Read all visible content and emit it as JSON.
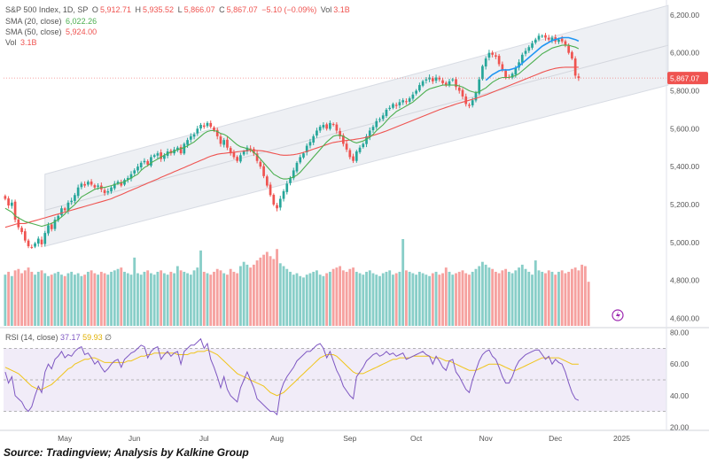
{
  "header": {
    "symbol": "S&P 500 Index, 1D, SP",
    "open_label": "O",
    "open": "5,912.71",
    "high_label": "H",
    "high": "5,935.52",
    "low_label": "L",
    "low": "5,866.07",
    "close_label": "C",
    "close": "5,867.07",
    "change": "−5.10 (−0.09%)",
    "vol_label": "Vol",
    "vol": "3.1B"
  },
  "indicators": {
    "sma20_label": "SMA (20, close)",
    "sma20_value": "6,022.26",
    "sma50_label": "SMA (50, close)",
    "sma50_value": "5,924.00",
    "vol_label": "Vol",
    "vol_value": "3.1B",
    "rsi_label": "RSI (14, close)",
    "rsi_value": "37.17",
    "rsi_ma_value": "59.93",
    "rsi_extra": "∅"
  },
  "price_badge": "5,867.07",
  "caption": "Source: Tradingview; Analysis by Kalkine Group",
  "colors": {
    "up": "#26a69a",
    "down": "#ef5350",
    "sma20": "#4caf50",
    "sma50": "#ef5350",
    "sma_blue": "#2196f3",
    "rsi": "#7e57c2",
    "rsi_ma": "#f0c419",
    "channel": "#d7dbe3"
  },
  "chart_data": {
    "type": "candlestick",
    "price_axis_ticks": [
      "6,200.00",
      "6,000.00",
      "5,800.00",
      "5,600.00",
      "5,400.00",
      "5,200.00",
      "5,000.00",
      "4,800.00",
      "4,600.00"
    ],
    "price_axis_values": [
      6200,
      6000,
      5800,
      5600,
      5400,
      5200,
      5000,
      4800,
      4600
    ],
    "rsi_axis_ticks": [
      "80.00",
      "60.00",
      "40.00",
      "20.00"
    ],
    "rsi_axis_values": [
      80,
      60,
      40,
      20
    ],
    "rsi_bands": [
      70,
      50,
      30
    ],
    "x_tick_labels": [
      "May",
      "Jun",
      "Jul",
      "Aug",
      "Sep",
      "Oct",
      "Nov",
      "Dec",
      "2025"
    ],
    "x_tick_index": [
      18,
      39,
      60,
      82,
      104,
      124,
      145,
      166,
      186
    ],
    "channel": {
      "start_index": 12,
      "end_index": 200,
      "lower_start": 4980,
      "lower_end": 5830,
      "upper_start": 5360,
      "upper_end": 6250
    },
    "closes": [
      5230,
      5195,
      5210,
      5120,
      5080,
      5055,
      5010,
      4980,
      4975,
      4995,
      5020,
      4990,
      5050,
      5090,
      5070,
      5120,
      5140,
      5180,
      5170,
      5210,
      5220,
      5250,
      5290,
      5310,
      5300,
      5320,
      5305,
      5290,
      5300,
      5280,
      5260,
      5270,
      5290,
      5310,
      5320,
      5300,
      5330,
      5340,
      5360,
      5380,
      5400,
      5420,
      5430,
      5410,
      5450,
      5460,
      5470,
      5440,
      5460,
      5480,
      5470,
      5490,
      5500,
      5470,
      5520,
      5540,
      5560,
      5570,
      5600,
      5620,
      5610,
      5630,
      5610,
      5590,
      5560,
      5520,
      5540,
      5500,
      5470,
      5450,
      5430,
      5460,
      5480,
      5500,
      5490,
      5470,
      5430,
      5400,
      5350,
      5300,
      5250,
      5200,
      5180,
      5230,
      5270,
      5310,
      5340,
      5380,
      5420,
      5450,
      5470,
      5510,
      5530,
      5560,
      5590,
      5610,
      5620,
      5600,
      5630,
      5620,
      5590,
      5560,
      5520,
      5490,
      5450,
      5430,
      5480,
      5500,
      5520,
      5560,
      5590,
      5610,
      5640,
      5650,
      5670,
      5700,
      5710,
      5730,
      5720,
      5740,
      5750,
      5740,
      5760,
      5780,
      5800,
      5830,
      5850,
      5860,
      5870,
      5850,
      5870,
      5860,
      5840,
      5830,
      5850,
      5860,
      5820,
      5800,
      5770,
      5730,
      5720,
      5750,
      5790,
      5860,
      5930,
      5970,
      6000,
      5990,
      5980,
      5940,
      5910,
      5870,
      5870,
      5890,
      5920,
      5950,
      5990,
      6010,
      6030,
      6050,
      6070,
      6090,
      6090,
      6080,
      6070,
      6080,
      6060,
      6070,
      6060,
      6040,
      6000,
      5970,
      5880,
      5867
    ],
    "sma20": [
      5180,
      5170,
      5160,
      5140,
      5130,
      5120,
      5110,
      5105,
      5100,
      5095,
      5090,
      5085,
      5090,
      5095,
      5100,
      5110,
      5120,
      5135,
      5150,
      5170,
      5185,
      5200,
      5220,
      5240,
      5250,
      5260,
      5270,
      5280,
      5285,
      5290,
      5290,
      5295,
      5300,
      5305,
      5310,
      5315,
      5320,
      5330,
      5340,
      5350,
      5360,
      5380,
      5395,
      5405,
      5420,
      5430,
      5440,
      5450,
      5460,
      5470,
      5475,
      5480,
      5490,
      5495,
      5500,
      5510,
      5520,
      5530,
      5545,
      5560,
      5575,
      5585,
      5590,
      5590,
      5585,
      5575,
      5570,
      5560,
      5545,
      5530,
      5515,
      5505,
      5500,
      5495,
      5490,
      5475,
      5460,
      5440,
      5420,
      5400,
      5380,
      5360,
      5350,
      5340,
      5335,
      5335,
      5340,
      5345,
      5355,
      5370,
      5390,
      5410,
      5430,
      5450,
      5470,
      5490,
      5510,
      5530,
      5545,
      5560,
      5565,
      5565,
      5560,
      5550,
      5540,
      5530,
      5525,
      5530,
      5535,
      5545,
      5555,
      5570,
      5590,
      5605,
      5620,
      5640,
      5660,
      5675,
      5690,
      5700,
      5710,
      5720,
      5730,
      5740,
      5755,
      5770,
      5785,
      5800,
      5810,
      5815,
      5820,
      5825,
      5830,
      5830,
      5830,
      5830,
      5830,
      5825,
      5820,
      5810,
      5800,
      5795,
      5790,
      5795,
      5805,
      5815,
      5830,
      5845,
      5855,
      5865,
      5870,
      5870,
      5870,
      5875,
      5880,
      5890,
      5905,
      5920,
      5935,
      5950,
      5965,
      5980,
      5995,
      6005,
      6015,
      6025,
      6030,
      6035,
      6040,
      6040,
      6040,
      6035,
      6030,
      6022
    ],
    "sma50": [
      5080,
      5085,
      5090,
      5095,
      5100,
      5100,
      5100,
      5105,
      5110,
      5115,
      5120,
      5125,
      5130,
      5135,
      5140,
      5145,
      5150,
      5155,
      5160,
      5165,
      5170,
      5175,
      5180,
      5185,
      5190,
      5195,
      5200,
      5205,
      5210,
      5215,
      5220,
      5225,
      5230,
      5238,
      5245,
      5252,
      5260,
      5268,
      5275,
      5283,
      5290,
      5298,
      5305,
      5313,
      5320,
      5328,
      5335,
      5343,
      5350,
      5358,
      5365,
      5373,
      5380,
      5388,
      5395,
      5403,
      5410,
      5418,
      5425,
      5433,
      5440,
      5448,
      5455,
      5460,
      5465,
      5468,
      5470,
      5472,
      5474,
      5476,
      5478,
      5480,
      5482,
      5484,
      5486,
      5486,
      5485,
      5484,
      5482,
      5478,
      5474,
      5470,
      5466,
      5462,
      5460,
      5460,
      5461,
      5463,
      5466,
      5470,
      5475,
      5480,
      5486,
      5492,
      5498,
      5504,
      5510,
      5516,
      5522,
      5527,
      5530,
      5533,
      5536,
      5538,
      5540,
      5542,
      5545,
      5548,
      5551,
      5555,
      5560,
      5565,
      5570,
      5576,
      5582,
      5588,
      5595,
      5602,
      5609,
      5616,
      5623,
      5630,
      5637,
      5644,
      5651,
      5658,
      5665,
      5672,
      5679,
      5686,
      5693,
      5700,
      5706,
      5712,
      5718,
      5724,
      5730,
      5735,
      5740,
      5745,
      5750,
      5755,
      5760,
      5766,
      5772,
      5778,
      5785,
      5792,
      5799,
      5806,
      5813,
      5820,
      5827,
      5834,
      5841,
      5848,
      5855,
      5862,
      5869,
      5876,
      5883,
      5890,
      5897,
      5903,
      5909,
      5914,
      5918,
      5921,
      5923,
      5924,
      5924,
      5924,
      5924,
      5924
    ],
    "rsi": [
      55,
      48,
      52,
      40,
      38,
      36,
      32,
      30,
      33,
      40,
      46,
      42,
      55,
      60,
      57,
      63,
      65,
      68,
      64,
      66,
      65,
      68,
      70,
      71,
      66,
      67,
      64,
      60,
      62,
      58,
      55,
      57,
      60,
      62,
      63,
      58,
      63,
      65,
      67,
      68,
      70,
      72,
      71,
      64,
      68,
      70,
      71,
      63,
      66,
      68,
      65,
      67,
      68,
      60,
      68,
      70,
      72,
      72,
      74,
      76,
      70,
      73,
      63,
      58,
      52,
      45,
      52,
      44,
      40,
      38,
      36,
      45,
      50,
      55,
      50,
      45,
      38,
      36,
      34,
      32,
      30,
      30,
      28,
      42,
      48,
      52,
      55,
      58,
      62,
      64,
      66,
      68,
      68,
      70,
      72,
      73,
      70,
      64,
      68,
      62,
      56,
      52,
      46,
      43,
      40,
      38,
      52,
      55,
      58,
      62,
      64,
      66,
      67,
      65,
      66,
      68,
      66,
      67,
      65,
      66,
      67,
      63,
      64,
      65,
      66,
      67,
      68,
      66,
      65,
      60,
      65,
      62,
      58,
      56,
      62,
      63,
      55,
      52,
      48,
      44,
      42,
      50,
      56,
      62,
      66,
      68,
      69,
      65,
      63,
      58,
      52,
      48,
      48,
      52,
      58,
      62,
      64,
      66,
      67,
      68,
      69,
      69,
      66,
      63,
      65,
      60,
      63,
      61,
      60,
      55,
      48,
      42,
      38,
      37
    ],
    "rsi_ma": [
      58,
      57,
      56,
      55,
      54,
      52,
      50,
      48,
      46,
      45,
      44,
      44,
      45,
      46,
      47,
      49,
      51,
      53,
      55,
      57,
      58,
      60,
      61,
      62,
      63,
      63,
      64,
      64,
      63,
      62,
      61,
      61,
      61,
      61,
      61,
      61,
      61,
      62,
      62,
      63,
      64,
      65,
      65,
      66,
      66,
      67,
      67,
      67,
      67,
      67,
      67,
      67,
      66,
      66,
      66,
      66,
      67,
      67,
      68,
      68,
      68,
      69,
      68,
      67,
      66,
      64,
      62,
      60,
      58,
      56,
      54,
      53,
      52,
      51,
      50,
      49,
      48,
      47,
      46,
      44,
      42,
      41,
      40,
      41,
      42,
      44,
      46,
      48,
      50,
      52,
      54,
      56,
      58,
      60,
      62,
      64,
      65,
      66,
      66,
      66,
      65,
      63,
      61,
      59,
      57,
      55,
      54,
      54,
      54,
      55,
      56,
      57,
      58,
      59,
      60,
      61,
      62,
      63,
      63,
      64,
      64,
      64,
      64,
      65,
      65,
      65,
      65,
      65,
      65,
      64,
      64,
      64,
      63,
      62,
      62,
      61,
      60,
      59,
      58,
      57,
      56,
      56,
      56,
      57,
      58,
      59,
      60,
      60,
      60,
      60,
      59,
      58,
      57,
      56,
      56,
      57,
      58,
      59,
      60,
      61,
      62,
      63,
      64,
      64,
      64,
      64,
      64,
      64,
      63,
      62,
      61,
      60,
      60,
      59.93
    ],
    "volume_billion": [
      3.6,
      3.8,
      3.5,
      3.9,
      4.0,
      3.7,
      3.9,
      4.1,
      3.8,
      3.6,
      3.8,
      3.9,
      3.7,
      3.5,
      3.6,
      3.7,
      3.8,
      3.6,
      3.5,
      3.7,
      3.8,
      3.6,
      3.7,
      3.5,
      3.6,
      3.8,
      3.9,
      3.7,
      3.6,
      3.8,
      3.7,
      3.6,
      3.8,
      3.9,
      4.0,
      4.1,
      3.8,
      3.7,
      3.6,
      4.8,
      3.7,
      3.6,
      3.8,
      3.9,
      3.7,
      3.6,
      3.8,
      3.9,
      3.7,
      3.6,
      3.8,
      3.7,
      4.2,
      3.9,
      3.8,
      3.7,
      3.6,
      3.9,
      4.1,
      5.3,
      3.8,
      3.7,
      3.6,
      3.8,
      4.0,
      3.9,
      3.7,
      3.6,
      4.0,
      3.8,
      3.7,
      4.2,
      4.5,
      4.3,
      4.1,
      4.3,
      4.6,
      4.8,
      5.0,
      5.2,
      4.9,
      4.7,
      5.4,
      4.4,
      4.2,
      4.0,
      3.8,
      3.6,
      3.7,
      3.5,
      3.4,
      3.6,
      3.7,
      3.8,
      3.9,
      3.6,
      3.5,
      3.7,
      3.8,
      4.0,
      4.1,
      4.2,
      3.9,
      3.8,
      4.0,
      4.1,
      3.8,
      3.7,
      3.6,
      3.8,
      3.9,
      3.7,
      3.6,
      3.5,
      3.7,
      3.8,
      3.9,
      3.6,
      3.7,
      3.8,
      6.1,
      3.9,
      3.8,
      3.7,
      3.6,
      3.8,
      3.7,
      3.6,
      3.5,
      3.7,
      3.8,
      3.6,
      3.7,
      4.1,
      3.8,
      3.6,
      3.7,
      3.8,
      3.9,
      3.7,
      3.6,
      3.8,
      4.0,
      4.2,
      4.5,
      4.3,
      4.1,
      4.0,
      3.8,
      3.7,
      3.9,
      4.0,
      3.8,
      3.7,
      3.9,
      4.1,
      4.3,
      4.0,
      3.8,
      3.6,
      4.6,
      3.9,
      3.8,
      3.7,
      3.9,
      3.8,
      3.6,
      3.8,
      3.9,
      3.7,
      3.8,
      4.0,
      4.1,
      3.9,
      4.3,
      4.2,
      3.1
    ],
    "ylim": [
      4560,
      6260
    ],
    "rsi_ylim": [
      18,
      82
    ]
  }
}
